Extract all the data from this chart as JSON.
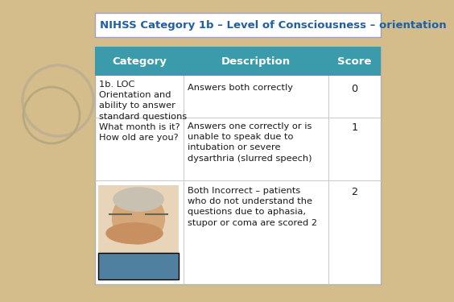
{
  "title": "NIHSS Category 1b – Level of Consciousness – orientation",
  "title_color": "#1F5FA6",
  "title_fontsize": 9.5,
  "bg_color": "#D4BD8A",
  "table_bg": "#FFFFFF",
  "header_bg": "#3C9BAA",
  "header_text_color": "#FFFFFF",
  "header_fontsize": 9.5,
  "body_fontsize": 8.2,
  "body_text_color": "#1A1A1A",
  "col_headers": [
    "Category",
    "Description",
    "Score"
  ],
  "category_text": "1b. LOC\nOrientation and\nability to answer\nstandard questions\nWhat month is it?\nHow old are you?",
  "rows": [
    {
      "description": "Answers both correctly",
      "score": "0"
    },
    {
      "description": "Answers one correctly or is\nunable to speak due to\nintubation or severe\ndysarthria (slurred speech)",
      "score": "1"
    },
    {
      "description": "Both Incorrect – patients\nwho do not understand the\nquestions due to aphasia,\nstupor or coma are scored 2",
      "score": "2"
    }
  ],
  "title_box_facecolor": "#FFFFFF",
  "title_box_edgecolor": "#A0A0C0",
  "circle1_color": "#C9B580",
  "circle2_color": "#BEA570",
  "circle3_color": "#D8CEAD",
  "table_border_color": "#B0B0B0",
  "separator_color": "#C8C8C8"
}
